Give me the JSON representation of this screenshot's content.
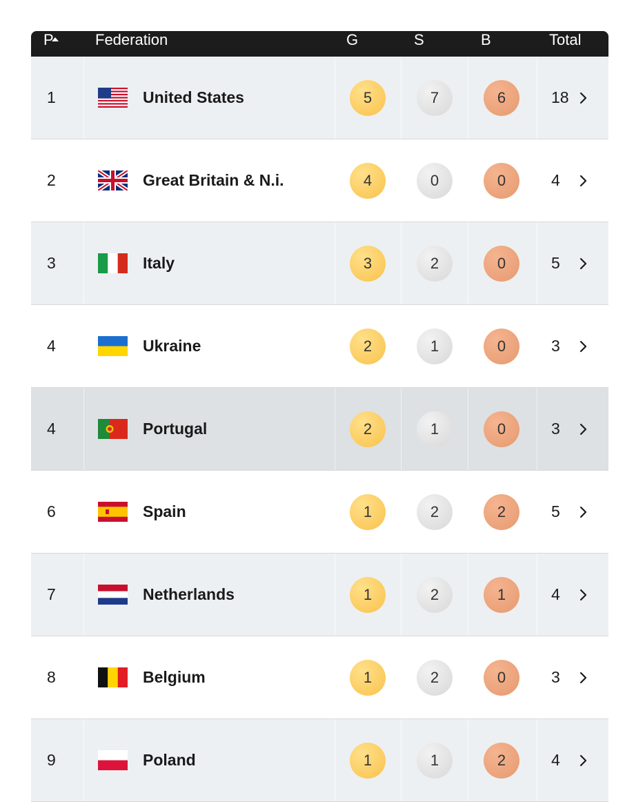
{
  "header": {
    "pos": "P",
    "federation": "Federation",
    "gold": "G",
    "silver": "S",
    "bronze": "B",
    "total": "Total"
  },
  "rows": [
    {
      "pos": "1",
      "name": "United States",
      "flag": "us-flag",
      "g": "5",
      "s": "7",
      "b": "6",
      "total": "18"
    },
    {
      "pos": "2",
      "name": "Great Britain & N.i.",
      "flag": "gb-flag",
      "g": "4",
      "s": "0",
      "b": "0",
      "total": "4"
    },
    {
      "pos": "3",
      "name": "Italy",
      "flag": "it-flag",
      "g": "3",
      "s": "2",
      "b": "0",
      "total": "5"
    },
    {
      "pos": "4",
      "name": "Ukraine",
      "flag": "ua-flag",
      "g": "2",
      "s": "1",
      "b": "0",
      "total": "3"
    },
    {
      "pos": "4",
      "name": "Portugal",
      "flag": "pt-flag",
      "g": "2",
      "s": "1",
      "b": "0",
      "total": "3"
    },
    {
      "pos": "6",
      "name": "Spain",
      "flag": "es-flag",
      "g": "1",
      "s": "2",
      "b": "2",
      "total": "5"
    },
    {
      "pos": "7",
      "name": "Netherlands",
      "flag": "nl-flag",
      "g": "1",
      "s": "2",
      "b": "1",
      "total": "4"
    },
    {
      "pos": "8",
      "name": "Belgium",
      "flag": "be-flag",
      "g": "1",
      "s": "2",
      "b": "0",
      "total": "3"
    },
    {
      "pos": "9",
      "name": "Poland",
      "flag": "pl-flag",
      "g": "1",
      "s": "1",
      "b": "2",
      "total": "4"
    }
  ],
  "icons": {
    "sort": "sort-ascending-icon",
    "row_chevron": "chevron-right-icon"
  },
  "colors": {
    "header_bg": "#1c1c1c",
    "row_alt_bg": "#edf0f2",
    "row_highlight_bg": "#dde1e4",
    "gold": "#f9c24c",
    "silver": "#d8d8d8",
    "bronze": "#e69a70"
  }
}
